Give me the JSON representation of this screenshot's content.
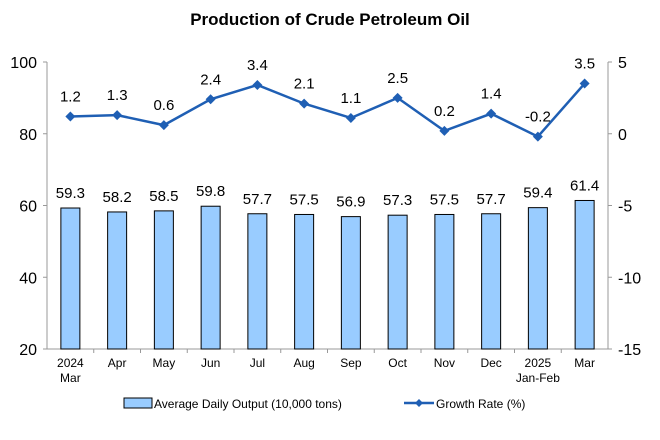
{
  "chart_data": {
    "type": "bar+line",
    "title": "Production of Crude Petroleum Oil",
    "categories": [
      [
        "2024",
        "Mar"
      ],
      [
        "Apr"
      ],
      [
        "May"
      ],
      [
        "Jun"
      ],
      [
        "Jul"
      ],
      [
        "Aug"
      ],
      [
        "Sep"
      ],
      [
        "Oct"
      ],
      [
        "Nov"
      ],
      [
        "Dec"
      ],
      [
        "2025",
        "Jan-Feb"
      ],
      [
        "Mar"
      ]
    ],
    "series": [
      {
        "name": "Average Daily Output (10,000 tons)",
        "type": "bar",
        "axis": "left",
        "values": [
          59.3,
          58.2,
          58.5,
          59.8,
          57.7,
          57.5,
          56.9,
          57.3,
          57.5,
          57.7,
          59.4,
          61.4
        ],
        "labels": [
          "59.3",
          "58.2",
          "58.5",
          "59.8",
          "57.7",
          "57.5",
          "56.9",
          "57.3",
          "57.5",
          "57.7",
          "59.4",
          "61.4"
        ],
        "color": "#99ccff"
      },
      {
        "name": "Growth Rate (%)",
        "type": "line",
        "axis": "right",
        "values": [
          1.2,
          1.3,
          0.6,
          2.4,
          3.4,
          2.1,
          1.1,
          2.5,
          0.2,
          1.4,
          -0.2,
          3.5
        ],
        "labels": [
          "1.2",
          "1.3",
          "0.6",
          "2.4",
          "3.4",
          "2.1",
          "1.1",
          "2.5",
          "0.2",
          "1.4",
          "-0.2",
          "3.5"
        ],
        "color": "#1f5fb4"
      }
    ],
    "y_left": {
      "range": [
        20,
        100
      ],
      "ticks": [
        "20",
        "40",
        "60",
        "80",
        "100"
      ]
    },
    "y_right": {
      "range": [
        -15,
        5
      ],
      "ticks": [
        "-15",
        "-10",
        "-5",
        "0",
        "5"
      ]
    },
    "legend": "bottom",
    "grid": false
  }
}
